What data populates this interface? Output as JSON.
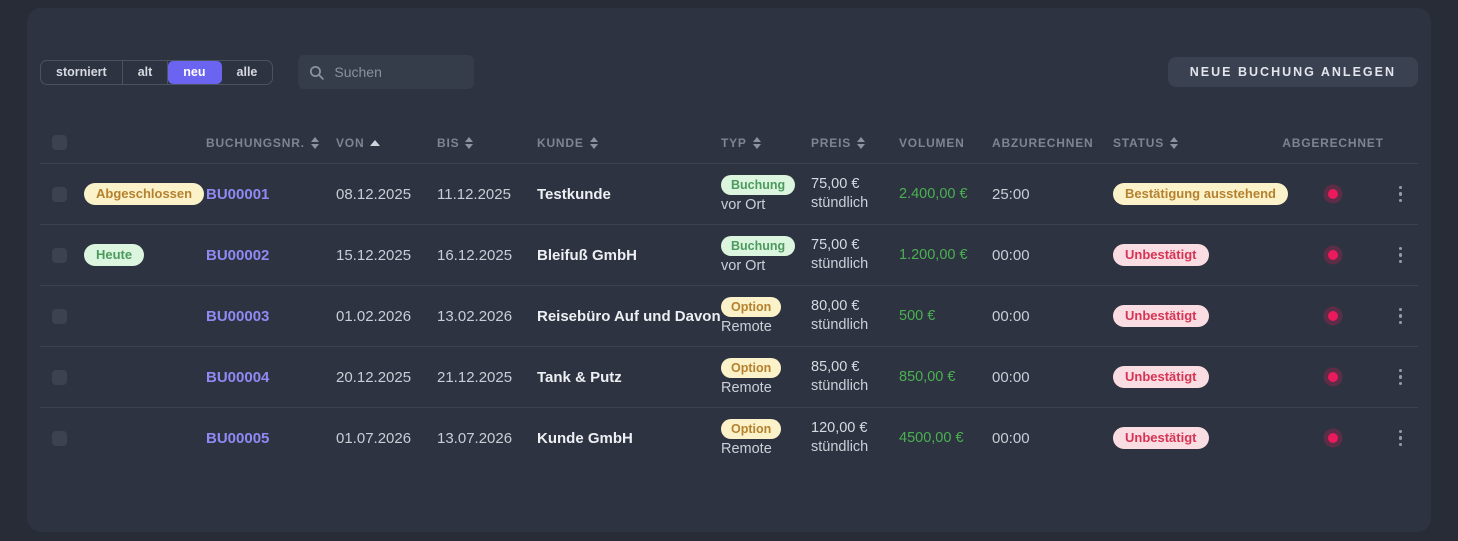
{
  "toolbar": {
    "filters": [
      {
        "label": "storniert",
        "active": false
      },
      {
        "label": "alt",
        "active": false
      },
      {
        "label": "neu",
        "active": true
      },
      {
        "label": "alle",
        "active": false
      }
    ],
    "search_placeholder": "Suchen",
    "new_booking_label": "NEUE BUCHUNG ANLEGEN"
  },
  "table": {
    "columns": [
      {
        "key": "select",
        "label": "",
        "sort": "none"
      },
      {
        "key": "tag",
        "label": "",
        "sort": "none"
      },
      {
        "key": "nr",
        "label": "BUCHUNGSNR.",
        "sort": "both"
      },
      {
        "key": "von",
        "label": "VON",
        "sort": "asc"
      },
      {
        "key": "bis",
        "label": "BIS",
        "sort": "both"
      },
      {
        "key": "kunde",
        "label": "KUNDE",
        "sort": "both"
      },
      {
        "key": "typ",
        "label": "TYP",
        "sort": "both"
      },
      {
        "key": "preis",
        "label": "PREIS",
        "sort": "both"
      },
      {
        "key": "volumen",
        "label": "VOLUMEN",
        "sort": "none"
      },
      {
        "key": "abzurechnen",
        "label": "ABZURECHNEN",
        "sort": "none"
      },
      {
        "key": "status",
        "label": "STATUS",
        "sort": "both"
      },
      {
        "key": "abgerechnet",
        "label": "ABGERECHNET",
        "sort": "none"
      }
    ],
    "rows": [
      {
        "tag": {
          "label": "Abgeschlossen",
          "variant": "yellow"
        },
        "booking_no": "BU00001",
        "von": "08.12.2025",
        "bis": "11.12.2025",
        "kunde": "Testkunde",
        "typ": {
          "label": "Buchung",
          "variant": "green",
          "location": "vor Ort"
        },
        "preis": {
          "amount": "75,00 €",
          "unit": "stündlich"
        },
        "volumen": "2.400,00 €",
        "abzurechnen": "25:00",
        "status": {
          "label": "Bestätigung ausstehend",
          "variant": "yellow"
        },
        "abgerechnet_indicator": "red-dot"
      },
      {
        "tag": {
          "label": "Heute",
          "variant": "green"
        },
        "booking_no": "BU00002",
        "von": "15.12.2025",
        "bis": "16.12.2025",
        "kunde": "Bleifuß GmbH",
        "typ": {
          "label": "Buchung",
          "variant": "green",
          "location": "vor Ort"
        },
        "preis": {
          "amount": "75,00 €",
          "unit": "stündlich"
        },
        "volumen": "1.200,00 €",
        "abzurechnen": "00:00",
        "status": {
          "label": "Unbestätigt",
          "variant": "pink"
        },
        "abgerechnet_indicator": "red-dot"
      },
      {
        "tag": null,
        "booking_no": "BU00003",
        "von": "01.02.2026",
        "bis": "13.02.2026",
        "kunde": "Reisebüro Auf und Davon",
        "typ": {
          "label": "Option",
          "variant": "yellow",
          "location": "Remote"
        },
        "preis": {
          "amount": "80,00 €",
          "unit": "stündlich"
        },
        "volumen": "500 €",
        "abzurechnen": "00:00",
        "status": {
          "label": "Unbestätigt",
          "variant": "pink"
        },
        "abgerechnet_indicator": "red-dot"
      },
      {
        "tag": null,
        "booking_no": "BU00004",
        "von": "20.12.2025",
        "bis": "21.12.2025",
        "kunde": "Tank & Putz",
        "typ": {
          "label": "Option",
          "variant": "yellow",
          "location": "Remote"
        },
        "preis": {
          "amount": "85,00 €",
          "unit": "stündlich"
        },
        "volumen": "850,00 €",
        "abzurechnen": "00:00",
        "status": {
          "label": "Unbestätigt",
          "variant": "pink"
        },
        "abgerechnet_indicator": "red-dot"
      },
      {
        "tag": null,
        "booking_no": "BU00005",
        "von": "01.07.2026",
        "bis": "13.07.2026",
        "kunde": "Kunde GmbH",
        "typ": {
          "label": "Option",
          "variant": "yellow",
          "location": "Remote"
        },
        "preis": {
          "amount": "120,00 €",
          "unit": "stündlich"
        },
        "volumen": "4500,00 €",
        "abzurechnen": "00:00",
        "status": {
          "label": "Unbestätigt",
          "variant": "pink"
        },
        "abgerechnet_indicator": "red-dot"
      }
    ]
  },
  "colors": {
    "page-bg": "#272c37",
    "card-bg": "#2d3340",
    "accent": "#6b64f0",
    "link": "#8f8af3",
    "money": "#4ab151",
    "dot": "#ea1a5c",
    "badge-yellow-bg": "#fbf2ca",
    "badge-yellow-text": "#b5812e",
    "badge-green-bg": "#dcf5de",
    "badge-green-text": "#4d9a5f",
    "badge-pink-bg": "#f9dde2",
    "badge-pink-text": "#d63454"
  }
}
